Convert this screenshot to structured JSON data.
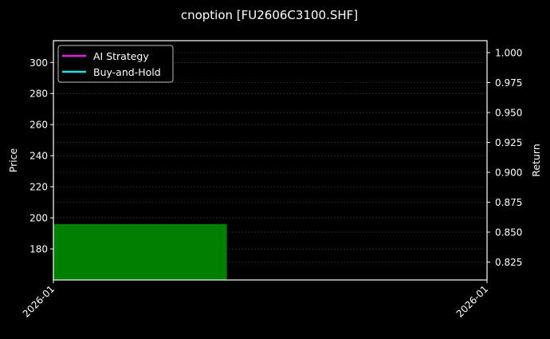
{
  "chart_data": {
    "type": "bar",
    "title": "cnoption [FU2606C3100.SHF]",
    "ylabel": "Price",
    "y2label": "Return",
    "ylim": [
      160,
      314
    ],
    "y2lim": [
      0.81,
      1.01
    ],
    "yticks": [
      180,
      200,
      220,
      240,
      260,
      280,
      300
    ],
    "y2ticks": [
      "0.825",
      "0.850",
      "0.875",
      "0.900",
      "0.925",
      "0.950",
      "0.975",
      "1.000"
    ],
    "xtick_labels": [
      "2026-01",
      "2026-01"
    ],
    "bars": [
      {
        "x_start_fraction": 0,
        "x_end_fraction": 0.4,
        "value": 196,
        "color": "#008000"
      }
    ],
    "legend": {
      "placement": "top-left",
      "entries": [
        {
          "name": "AI Strategy",
          "color": "#e11ee1"
        },
        {
          "name": "Buy-and-Hold",
          "color": "#22e0e0"
        }
      ]
    },
    "grid": true,
    "background": "#000000"
  }
}
